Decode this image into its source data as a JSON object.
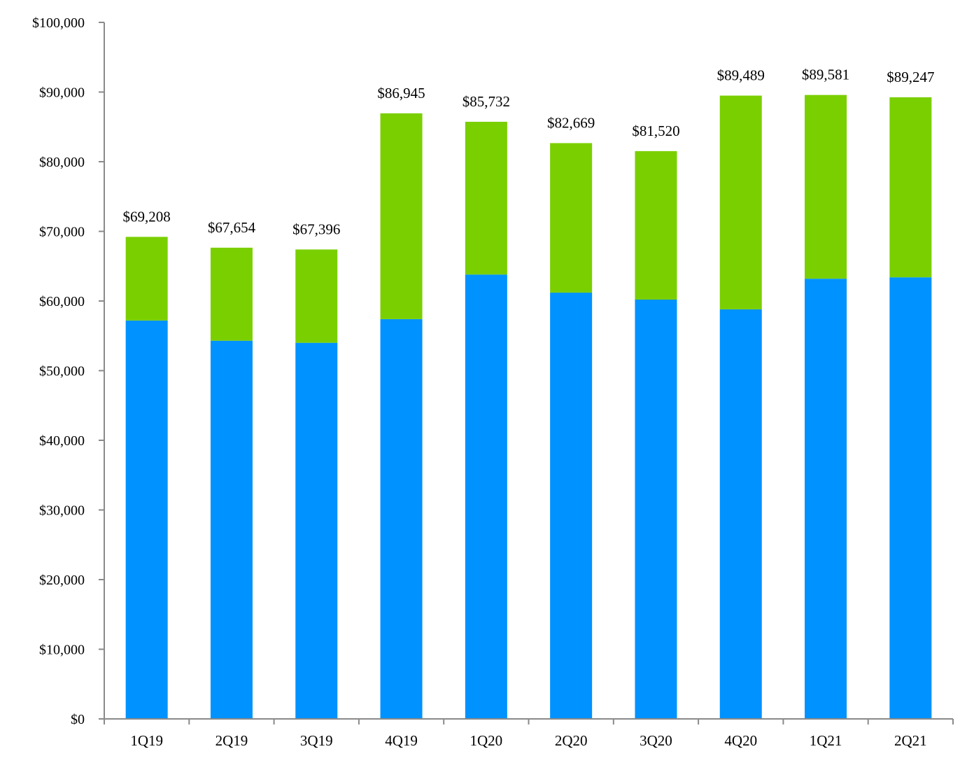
{
  "chart_data": {
    "type": "bar",
    "stacked": true,
    "title": "",
    "xlabel": "",
    "ylabel": "",
    "ylim": [
      0,
      100000
    ],
    "yticks": [
      0,
      10000,
      20000,
      30000,
      40000,
      50000,
      60000,
      70000,
      80000,
      90000,
      100000
    ],
    "ytick_labels": [
      "$0",
      "$10,000",
      "$20,000",
      "$30,000",
      "$40,000",
      "$50,000",
      "$60,000",
      "$70,000",
      "$80,000",
      "$90,000",
      "$100,000"
    ],
    "grid": false,
    "legend": "none",
    "categories": [
      "1Q19",
      "2Q19",
      "3Q19",
      "4Q19",
      "1Q20",
      "2Q20",
      "3Q20",
      "4Q20",
      "1Q21",
      "2Q21"
    ],
    "series": [
      {
        "name": "bottom segment",
        "color": "#0092FF",
        "values": [
          57200,
          54300,
          54000,
          57400,
          63800,
          61200,
          60200,
          58800,
          63200,
          63400
        ]
      },
      {
        "name": "top segment",
        "color": "#7ACF00",
        "values": [
          12008,
          13354,
          13396,
          29545,
          21932,
          21469,
          21320,
          30689,
          26381,
          25847
        ]
      }
    ],
    "totals": [
      69208,
      67654,
      67396,
      86945,
      85732,
      82669,
      81520,
      89489,
      89581,
      89247
    ],
    "total_labels": [
      "$69,208",
      "$67,654",
      "$67,396",
      "$86,945",
      "$85,732",
      "$82,669",
      "$81,520",
      "$89,489",
      "$89,581",
      "$89,247"
    ]
  },
  "colors": {
    "axis": "#8a8a8a",
    "bottom_segment": "#0092FF",
    "top_segment": "#7ACF00"
  }
}
